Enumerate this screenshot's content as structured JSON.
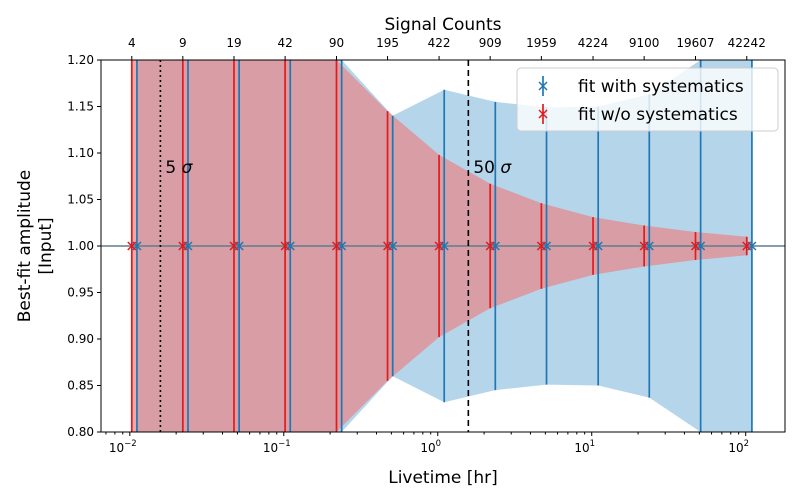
{
  "chart_data": {
    "type": "scatter",
    "xscale": "log",
    "xlabel": "Livetime [hr]",
    "ylabel_line1": "Best-fit amplitude",
    "ylabel_line2": "[Input]",
    "top_axis_label": "Signal Counts",
    "xlim": [
      0.0065,
      180
    ],
    "ylim": [
      0.8,
      1.2
    ],
    "x_tick_labels": [
      {
        "x": 0.01,
        "base": "10",
        "exp": "−2"
      },
      {
        "x": 0.1,
        "base": "10",
        "exp": "−1"
      },
      {
        "x": 1,
        "base": "10",
        "exp": "0"
      },
      {
        "x": 10,
        "base": "10",
        "exp": "1"
      },
      {
        "x": 100,
        "base": "10",
        "exp": "2"
      }
    ],
    "y_ticks": [
      0.8,
      0.85,
      0.9,
      0.95,
      1.0,
      1.05,
      1.1,
      1.15,
      1.2
    ],
    "y_tick_labels": [
      "0.80",
      "0.85",
      "0.90",
      "0.95",
      "1.00",
      "1.05",
      "1.10",
      "1.15",
      "1.20"
    ],
    "livetime": [
      0.0103,
      0.0221,
      0.0475,
      0.102,
      0.22,
      0.472,
      1.02,
      2.19,
      4.71,
      10.2,
      21.9,
      47.2,
      101.6
    ],
    "signal_counts": [
      "4",
      "9",
      "19",
      "42",
      "90",
      "195",
      "422",
      "909",
      "1959",
      "4224",
      "9100",
      "19607",
      "42242"
    ],
    "reference_line": 1.0,
    "series": [
      {
        "name": "fit with systematics",
        "color": "#1f77b4",
        "band_color": "#6baed6",
        "x_offset_factor": 1.08,
        "y": [
          1,
          1,
          1,
          1,
          1,
          1,
          1,
          1,
          1,
          1,
          1,
          1,
          1
        ],
        "err": [
          1.0,
          0.9,
          0.8,
          0.7,
          0.6,
          0.14,
          0.168,
          0.155,
          0.149,
          0.15,
          0.163,
          0.3,
          0.4
        ],
        "marker": "x"
      },
      {
        "name": "fit w/o systematics",
        "color": "#e31a1c",
        "band_color": "#e78587",
        "x_offset_factor": 1.0,
        "y": [
          1,
          1,
          1,
          1,
          1,
          1,
          1,
          1,
          1,
          1,
          1,
          1,
          1
        ],
        "err": [
          1.0,
          0.9,
          0.8,
          0.7,
          0.4,
          0.145,
          0.098,
          0.067,
          0.046,
          0.031,
          0.022,
          0.015,
          0.01
        ],
        "marker": "x"
      }
    ],
    "vlines": [
      {
        "x": 0.0158,
        "style": "dotted",
        "label": "5",
        "symbol": "σ",
        "label_y": 1.085
      },
      {
        "x": 1.58,
        "style": "dashed",
        "label": "50",
        "symbol": "σ",
        "label_y": 1.085
      }
    ],
    "legend_position": "upper right"
  }
}
